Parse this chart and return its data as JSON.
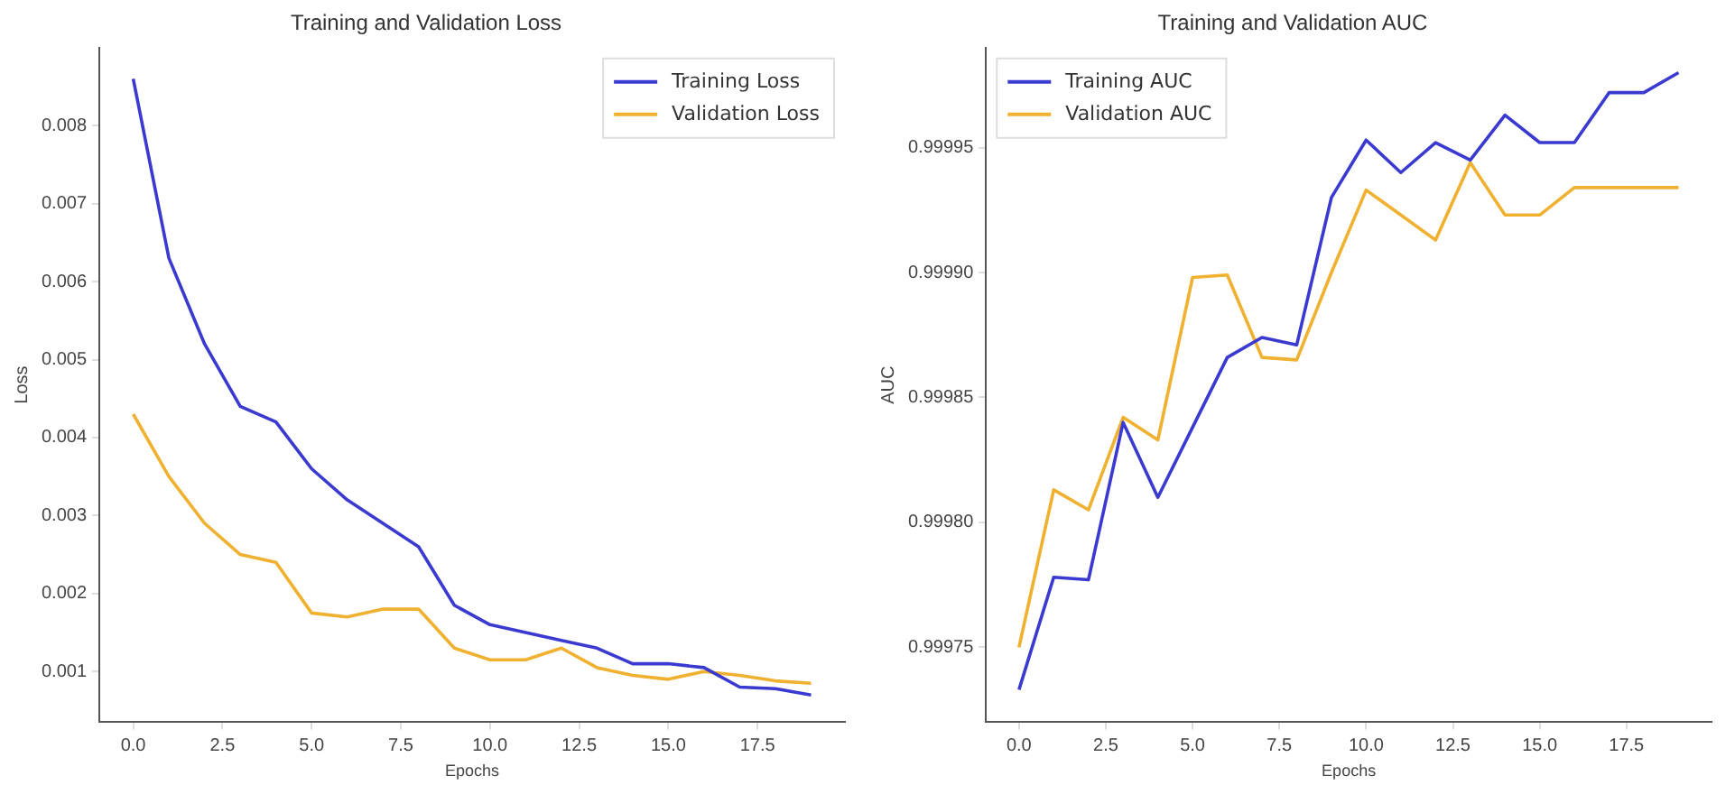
{
  "chart_data": [
    {
      "type": "line",
      "title": "Training and Validation Loss",
      "xlabel": "Epochs",
      "ylabel": "Loss",
      "legend": "top right",
      "grid": false,
      "marker": "none",
      "line_style": "solid",
      "x": [
        0,
        1,
        2,
        3,
        4,
        5,
        6,
        7,
        8,
        9,
        10,
        11,
        12,
        13,
        14,
        15,
        16,
        17,
        18,
        19
      ],
      "xlim": [
        -0.95,
        19.95
      ],
      "ylim": [
        0.00035,
        0.009
      ],
      "xticks": [
        {
          "value": 0,
          "label": "0.0"
        },
        {
          "value": 2.5,
          "label": "2.5"
        },
        {
          "value": 5,
          "label": "5.0"
        },
        {
          "value": 7.5,
          "label": "7.5"
        },
        {
          "value": 10,
          "label": "10.0"
        },
        {
          "value": 12.5,
          "label": "12.5"
        },
        {
          "value": 15,
          "label": "15.0"
        },
        {
          "value": 17.5,
          "label": "17.5"
        }
      ],
      "yticks": [
        0.001,
        0.002,
        0.003,
        0.004,
        0.005,
        0.006,
        0.007,
        0.008
      ],
      "series": [
        {
          "name": "Training Loss",
          "color": "#3a3ad0",
          "values": [
            0.0086,
            0.0063,
            0.0052,
            0.0044,
            0.0042,
            0.0036,
            0.0032,
            0.0029,
            0.0026,
            0.00185,
            0.0016,
            0.0015,
            0.0014,
            0.0013,
            0.0011,
            0.0011,
            0.00105,
            0.0008,
            0.00078,
            0.0007
          ]
        },
        {
          "name": "Validation Loss",
          "color": "#f0b030",
          "values": [
            0.0043,
            0.0035,
            0.0029,
            0.0025,
            0.0024,
            0.00175,
            0.0017,
            0.0018,
            0.0018,
            0.0013,
            0.00115,
            0.00115,
            0.0013,
            0.00105,
            0.00095,
            0.0009,
            0.001,
            0.00095,
            0.00088,
            0.00085
          ]
        }
      ]
    },
    {
      "type": "line",
      "title": "Training and Validation AUC",
      "xlabel": "Epochs",
      "ylabel": "AUC",
      "legend": "top left",
      "grid": false,
      "marker": "none",
      "line_style": "solid",
      "x": [
        0,
        1,
        2,
        3,
        4,
        5,
        6,
        7,
        8,
        9,
        10,
        11,
        12,
        13,
        14,
        15,
        16,
        17,
        18,
        19
      ],
      "xlim": [
        -0.95,
        19.95
      ],
      "ylim": [
        0.99972,
        0.99999
      ],
      "xticks": [
        {
          "value": 0,
          "label": "0.0"
        },
        {
          "value": 2.5,
          "label": "2.5"
        },
        {
          "value": 5,
          "label": "5.0"
        },
        {
          "value": 7.5,
          "label": "7.5"
        },
        {
          "value": 10,
          "label": "10.0"
        },
        {
          "value": 12.5,
          "label": "12.5"
        },
        {
          "value": 15,
          "label": "15.0"
        },
        {
          "value": 17.5,
          "label": "17.5"
        }
      ],
      "yticks": [
        0.99975,
        {
          "value": 0.9998,
          "label": "0.99980"
        },
        0.99985,
        {
          "value": 0.9999,
          "label": "0.99990"
        },
        0.99995
      ],
      "series": [
        {
          "name": "Training AUC",
          "color": "#3a3ad0",
          "values": [
            0.999733,
            0.999778,
            0.999777,
            0.99984,
            0.99981,
            0.999838,
            0.999866,
            0.999874,
            0.999871,
            0.99993,
            0.999953,
            0.99994,
            0.999952,
            0.999945,
            0.999963,
            0.999952,
            0.999952,
            0.999972,
            0.999972,
            0.99998
          ]
        },
        {
          "name": "Validation AUC",
          "color": "#f0b030",
          "values": [
            0.99975,
            0.999813,
            0.999805,
            0.999842,
            0.999833,
            0.999898,
            0.999899,
            0.999866,
            0.999865,
            0.9999,
            0.999933,
            0.999923,
            0.999913,
            0.999944,
            0.999923,
            0.999923,
            0.999934,
            0.999934,
            0.999934,
            0.999934
          ]
        }
      ]
    }
  ]
}
